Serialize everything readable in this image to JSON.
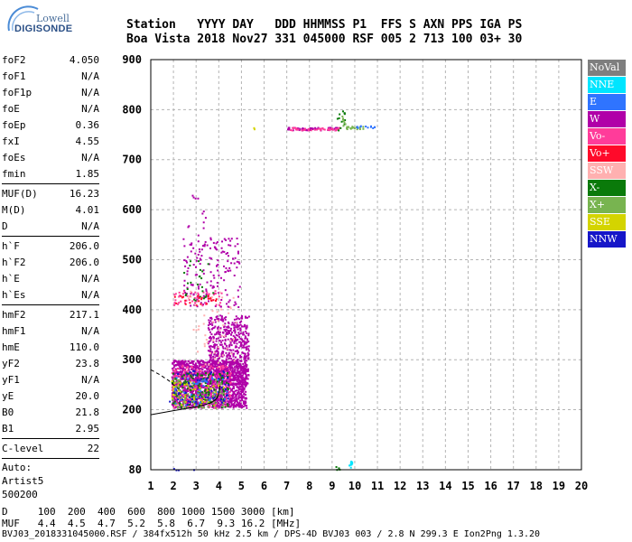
{
  "logo": {
    "top": "Lowell",
    "bottom": "DIGISONDE"
  },
  "header": {
    "line1": "Station   YYYY DAY   DDD HHMMSS P1  FFS S AXN PPS IGA PS",
    "line2": "Boa Vista 2018 Nov27 331 045000 RSF 005 2 713 100 03+ 30"
  },
  "params": [
    {
      "name": "foF2",
      "value": "4.050"
    },
    {
      "name": "foF1",
      "value": "N/A"
    },
    {
      "name": "foF1p",
      "value": "N/A"
    },
    {
      "name": "foE",
      "value": "N/A"
    },
    {
      "name": "foEp",
      "value": "0.36"
    },
    {
      "name": "fxI",
      "value": "4.55"
    },
    {
      "name": "foEs",
      "value": "N/A"
    },
    {
      "name": "fmin",
      "value": "1.85",
      "sep": true
    },
    {
      "name": "MUF(D)",
      "value": "16.23"
    },
    {
      "name": "M(D)",
      "value": "4.01"
    },
    {
      "name": "D",
      "value": "N/A",
      "sep": true
    },
    {
      "name": "h`F",
      "value": "206.0"
    },
    {
      "name": "h`F2",
      "value": "206.0"
    },
    {
      "name": "h`E",
      "value": "N/A"
    },
    {
      "name": "h`Es",
      "value": "N/A",
      "sep": true
    },
    {
      "name": "hmF2",
      "value": "217.1"
    },
    {
      "name": "hmF1",
      "value": "N/A"
    },
    {
      "name": "hmE",
      "value": "110.0"
    },
    {
      "name": "yF2",
      "value": "23.8"
    },
    {
      "name": "yF1",
      "value": "N/A"
    },
    {
      "name": "yE",
      "value": "20.0"
    },
    {
      "name": "B0",
      "value": "21.8"
    },
    {
      "name": "B1",
      "value": "2.95",
      "sep": true
    },
    {
      "name": "C-level",
      "value": "22",
      "sep": true
    }
  ],
  "autoscale": {
    "line1": "Auto:",
    "line2": "Artist5",
    "line3": "500200"
  },
  "legend": [
    {
      "label": "NoVal",
      "color": "#7f7f7f"
    },
    {
      "label": "NNE",
      "color": "#00e5ff"
    },
    {
      "label": "E",
      "color": "#2f74ff"
    },
    {
      "label": "W",
      "color": "#b000a8"
    },
    {
      "label": "Vo-",
      "color": "#ff3c9a"
    },
    {
      "label": "Vo+",
      "color": "#ff0a2a"
    },
    {
      "label": "SSW",
      "color": "#ffb0b0"
    },
    {
      "label": "X-",
      "color": "#0a7a0a"
    },
    {
      "label": "X+",
      "color": "#78b450"
    },
    {
      "label": "SSE",
      "color": "#d4d400"
    },
    {
      "label": "NNW",
      "color": "#1616c8"
    }
  ],
  "footer": {
    "d_line": "D     100  200  400  600  800 1000 1500 3000 [km]",
    "muf_line": "MUF   4.4  4.5  4.7  5.2  5.8  6.7  9.3 16.2 [MHz]",
    "file_line": "BVJ03_2018331045000.RSF / 384fx512h 50 kHz 2.5 km / DPS-4D BVJ03 003 / 2.8 N 299.3 E Ion2Png 1.3.20"
  },
  "chart_data": {
    "type": "scatter",
    "xlim": [
      1,
      20
    ],
    "ylim": [
      80,
      900
    ],
    "xticks": [
      "1",
      "2",
      "3",
      "4",
      "5",
      "6",
      "7",
      "8",
      "9",
      "10",
      "11",
      "12",
      "13",
      "14",
      "15",
      "16",
      "17",
      "18",
      "19",
      "20"
    ],
    "yticks": [
      "80",
      "200",
      "300",
      "400",
      "500",
      "600",
      "700",
      "800",
      "900"
    ],
    "grid": true,
    "clusters": [
      {
        "series": "W",
        "x": [
          1.9,
          5.2
        ],
        "y": [
          205,
          300
        ],
        "n": 1400
      },
      {
        "series": "W",
        "x": [
          3.5,
          5.3
        ],
        "y": [
          250,
          390
        ],
        "n": 600
      },
      {
        "series": "Vo-",
        "x": [
          1.9,
          4.5
        ],
        "y": [
          205,
          290
        ],
        "n": 220
      },
      {
        "series": "X-",
        "x": [
          1.9,
          4.4
        ],
        "y": [
          205,
          275
        ],
        "n": 160
      },
      {
        "series": "X+",
        "x": [
          1.9,
          4.2
        ],
        "y": [
          205,
          265
        ],
        "n": 80
      },
      {
        "series": "SSE",
        "x": [
          1.9,
          4.2
        ],
        "y": [
          210,
          260
        ],
        "n": 60
      },
      {
        "series": "NNW",
        "x": [
          1.8,
          4.4
        ],
        "y": [
          210,
          280
        ],
        "n": 60
      },
      {
        "series": "E",
        "x": [
          2.0,
          4.4
        ],
        "y": [
          210,
          270
        ],
        "n": 40
      },
      {
        "series": "W",
        "x": [
          2.4,
          4.9
        ],
        "y": [
          405,
          545
        ],
        "n": 160
      },
      {
        "series": "Vo-",
        "x": [
          2.0,
          4.1
        ],
        "y": [
          410,
          440
        ],
        "n": 50
      },
      {
        "series": "X-",
        "x": [
          2.4,
          3.9
        ],
        "y": [
          420,
          500
        ],
        "n": 25
      },
      {
        "series": "Vo+",
        "x": [
          2.0,
          3.9
        ],
        "y": [
          410,
          430
        ],
        "n": 25
      },
      {
        "series": "SSW",
        "x": [
          2.6,
          4.8
        ],
        "y": [
          280,
          440
        ],
        "n": 50
      },
      {
        "series": "W",
        "x": [
          2.6,
          3.4
        ],
        "y": [
          520,
          640
        ],
        "n": 15
      },
      {
        "series": "W",
        "x": [
          7.0,
          9.2
        ],
        "y": [
          760,
          766
        ],
        "n": 55
      },
      {
        "series": "Vo-",
        "x": [
          7.0,
          9.3
        ],
        "y": [
          760,
          766
        ],
        "n": 40
      },
      {
        "series": "X+",
        "x": [
          9.6,
          10.4
        ],
        "y": [
          762,
          768
        ],
        "n": 20
      },
      {
        "series": "E",
        "x": [
          10.0,
          10.9
        ],
        "y": [
          764,
          770
        ],
        "n": 12
      },
      {
        "series": "X-",
        "x": [
          9.2,
          9.6
        ],
        "y": [
          748,
          802
        ],
        "n": 12
      },
      {
        "series": "X+",
        "x": [
          9.4,
          9.7
        ],
        "y": [
          752,
          790
        ],
        "n": 8
      },
      {
        "series": "NNE",
        "x": [
          9.7,
          9.9
        ],
        "y": [
          80,
          100
        ],
        "n": 10
      },
      {
        "series": "X-",
        "x": [
          9.1,
          9.3
        ],
        "y": [
          80,
          92
        ],
        "n": 4
      },
      {
        "series": "SSE",
        "x": [
          5.5,
          5.7
        ],
        "y": [
          762,
          766
        ],
        "n": 2
      },
      {
        "series": "NNW",
        "x": [
          1.9,
          3.1
        ],
        "y": [
          80,
          84
        ],
        "n": 4
      }
    ],
    "profile_curve": {
      "x": [
        1.0,
        1.5,
        2.0,
        2.5,
        3.0,
        3.4,
        3.7,
        3.9,
        4.0,
        4.05
      ],
      "y": [
        190,
        194,
        198,
        202,
        206,
        210,
        215,
        222,
        232,
        248
      ]
    },
    "profile_dashed": {
      "x": [
        1.0,
        1.4,
        1.8,
        2.0,
        2.2
      ],
      "y": [
        280,
        270,
        258,
        250,
        242
      ]
    }
  }
}
